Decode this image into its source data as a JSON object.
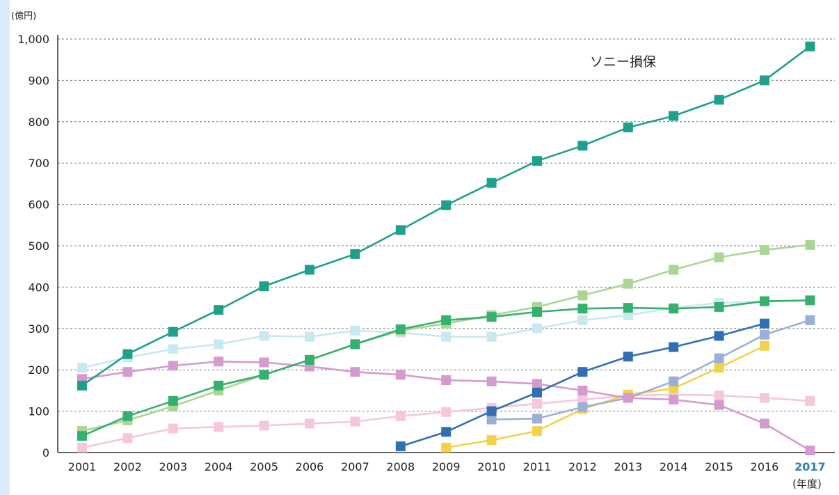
{
  "chart_data": {
    "type": "line",
    "ylabel_unit": "(億円)",
    "xlabel_unit": "(年度)",
    "annotation": "ソニー損保",
    "ylim": [
      0,
      1000
    ],
    "y_ticks": [
      "0",
      "100",
      "200",
      "300",
      "400",
      "500",
      "600",
      "700",
      "800",
      "900",
      "1,000"
    ],
    "y_tick_values": [
      0,
      100,
      200,
      300,
      400,
      500,
      600,
      700,
      800,
      900,
      1000
    ],
    "categories": [
      "2001",
      "2002",
      "2003",
      "2004",
      "2005",
      "2006",
      "2007",
      "2008",
      "2009",
      "2010",
      "2011",
      "2012",
      "2013",
      "2014",
      "2015",
      "2016",
      "2017"
    ],
    "highlight_category": "2017",
    "grid": "horizontal-dashed",
    "colors": {
      "grid": "#7a7a7a",
      "axis": "#333333",
      "highlight_tick": "#2d7fb8",
      "left_accent": "#dbeaf7"
    },
    "series": [
      {
        "color": "#c9e8f0",
        "values": [
          205,
          230,
          250,
          262,
          282,
          280,
          295,
          290,
          280,
          280,
          300,
          320,
          332,
          350,
          362,
          365,
          368
        ]
      },
      {
        "color": "#f6c6dd",
        "values": [
          12,
          35,
          58,
          62,
          65,
          70,
          75,
          88,
          98,
          108,
          118,
          128,
          138,
          140,
          138,
          132,
          125
        ]
      },
      {
        "color": "#f3d24a",
        "values": [
          null,
          null,
          null,
          null,
          null,
          null,
          null,
          null,
          12,
          30,
          52,
          105,
          140,
          155,
          205,
          258,
          null
        ]
      },
      {
        "color": "#9bb0d9",
        "values": [
          null,
          null,
          null,
          null,
          null,
          null,
          null,
          null,
          null,
          80,
          82,
          110,
          132,
          172,
          228,
          285,
          320
        ]
      },
      {
        "color": "#d59ad0",
        "values": [
          178,
          195,
          210,
          220,
          218,
          208,
          195,
          188,
          175,
          172,
          166,
          150,
          132,
          128,
          115,
          70,
          5
        ]
      },
      {
        "color": "#2f6fb2",
        "values": [
          null,
          null,
          null,
          null,
          null,
          null,
          null,
          15,
          50,
          100,
          145,
          195,
          232,
          255,
          282,
          312,
          null
        ]
      },
      {
        "color": "#a9d692",
        "values": [
          52,
          78,
          112,
          150,
          188,
          224,
          262,
          295,
          312,
          332,
          352,
          380,
          408,
          442,
          472,
          490,
          502
        ]
      },
      {
        "color": "#35b06e",
        "values": [
          40,
          88,
          125,
          162,
          188,
          224,
          262,
          298,
          320,
          328,
          340,
          348,
          350,
          348,
          352,
          366,
          368
        ]
      },
      {
        "color": "#1fa08c",
        "values": [
          162,
          238,
          292,
          345,
          402,
          442,
          480,
          538,
          598,
          652,
          705,
          742,
          786,
          814,
          853,
          900,
          982
        ]
      }
    ]
  }
}
